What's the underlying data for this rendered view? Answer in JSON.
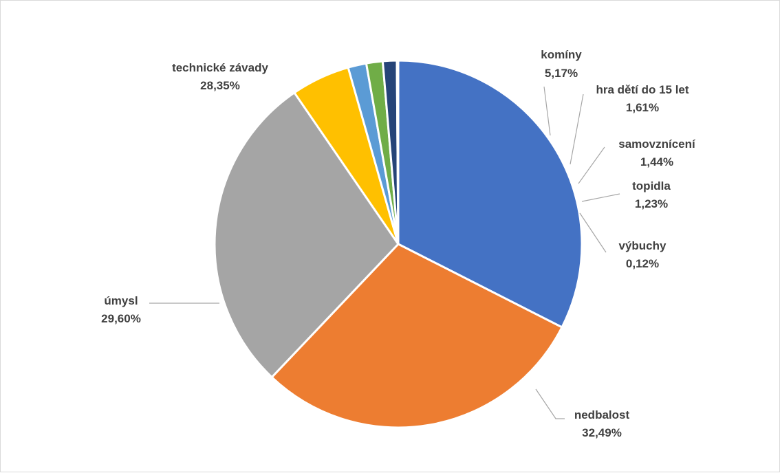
{
  "chart_data": {
    "type": "pie",
    "title": "",
    "start_angle_deg": 90,
    "direction": "clockwise",
    "legend": "none",
    "slices": [
      {
        "name": "nedbalost",
        "value": 32.49,
        "label": "32,49%",
        "color": "#4472C4"
      },
      {
        "name": "úmysl",
        "value": 29.6,
        "label": "29,60%",
        "color": "#ED7D31"
      },
      {
        "name": "technické závady",
        "value": 28.35,
        "label": "28,35%",
        "color": "#A5A5A5"
      },
      {
        "name": "komíny",
        "value": 5.17,
        "label": "5,17%",
        "color": "#FFC000"
      },
      {
        "name": "hra dětí do 15 let",
        "value": 1.61,
        "label": "1,61%",
        "color": "#5B9BD5"
      },
      {
        "name": "samovznícení",
        "value": 1.44,
        "label": "1,44%",
        "color": "#70AD47"
      },
      {
        "name": "topidla",
        "value": 1.23,
        "label": "1,23%",
        "color": "#264478"
      },
      {
        "name": "výbuchy",
        "value": 0.12,
        "label": "0,12%",
        "color": "#9E480E"
      }
    ]
  }
}
